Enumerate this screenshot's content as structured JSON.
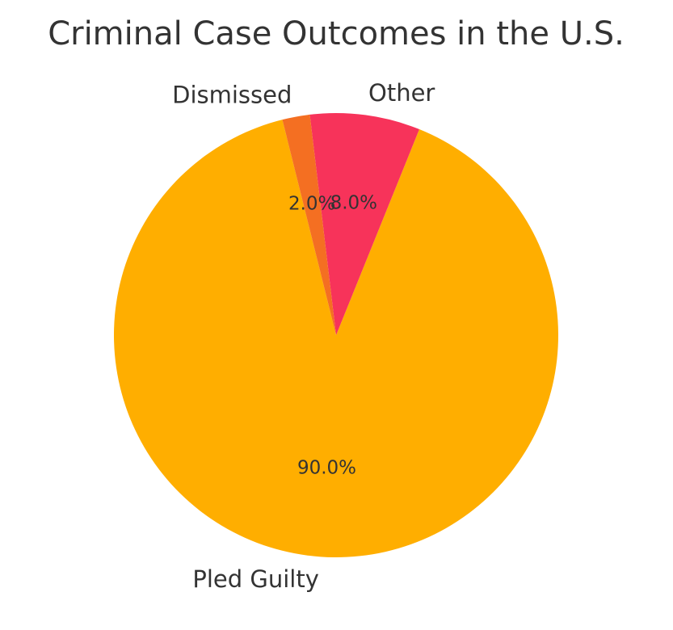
{
  "chart_data": {
    "type": "pie",
    "title": "Criminal Case Outcomes in the U.S.",
    "slices": [
      {
        "label": "Pled Guilty",
        "value": 90.0,
        "pct_label": "90.0%",
        "color": "#FFAE00"
      },
      {
        "label": "Other",
        "value": 8.0,
        "pct_label": "8.0%",
        "color": "#F7335A"
      },
      {
        "label": "Dismissed",
        "value": 2.0,
        "pct_label": "2.0%",
        "color": "#F46F22"
      }
    ],
    "start_angle": 104,
    "direction": "counterclockwise",
    "legend": "none"
  }
}
